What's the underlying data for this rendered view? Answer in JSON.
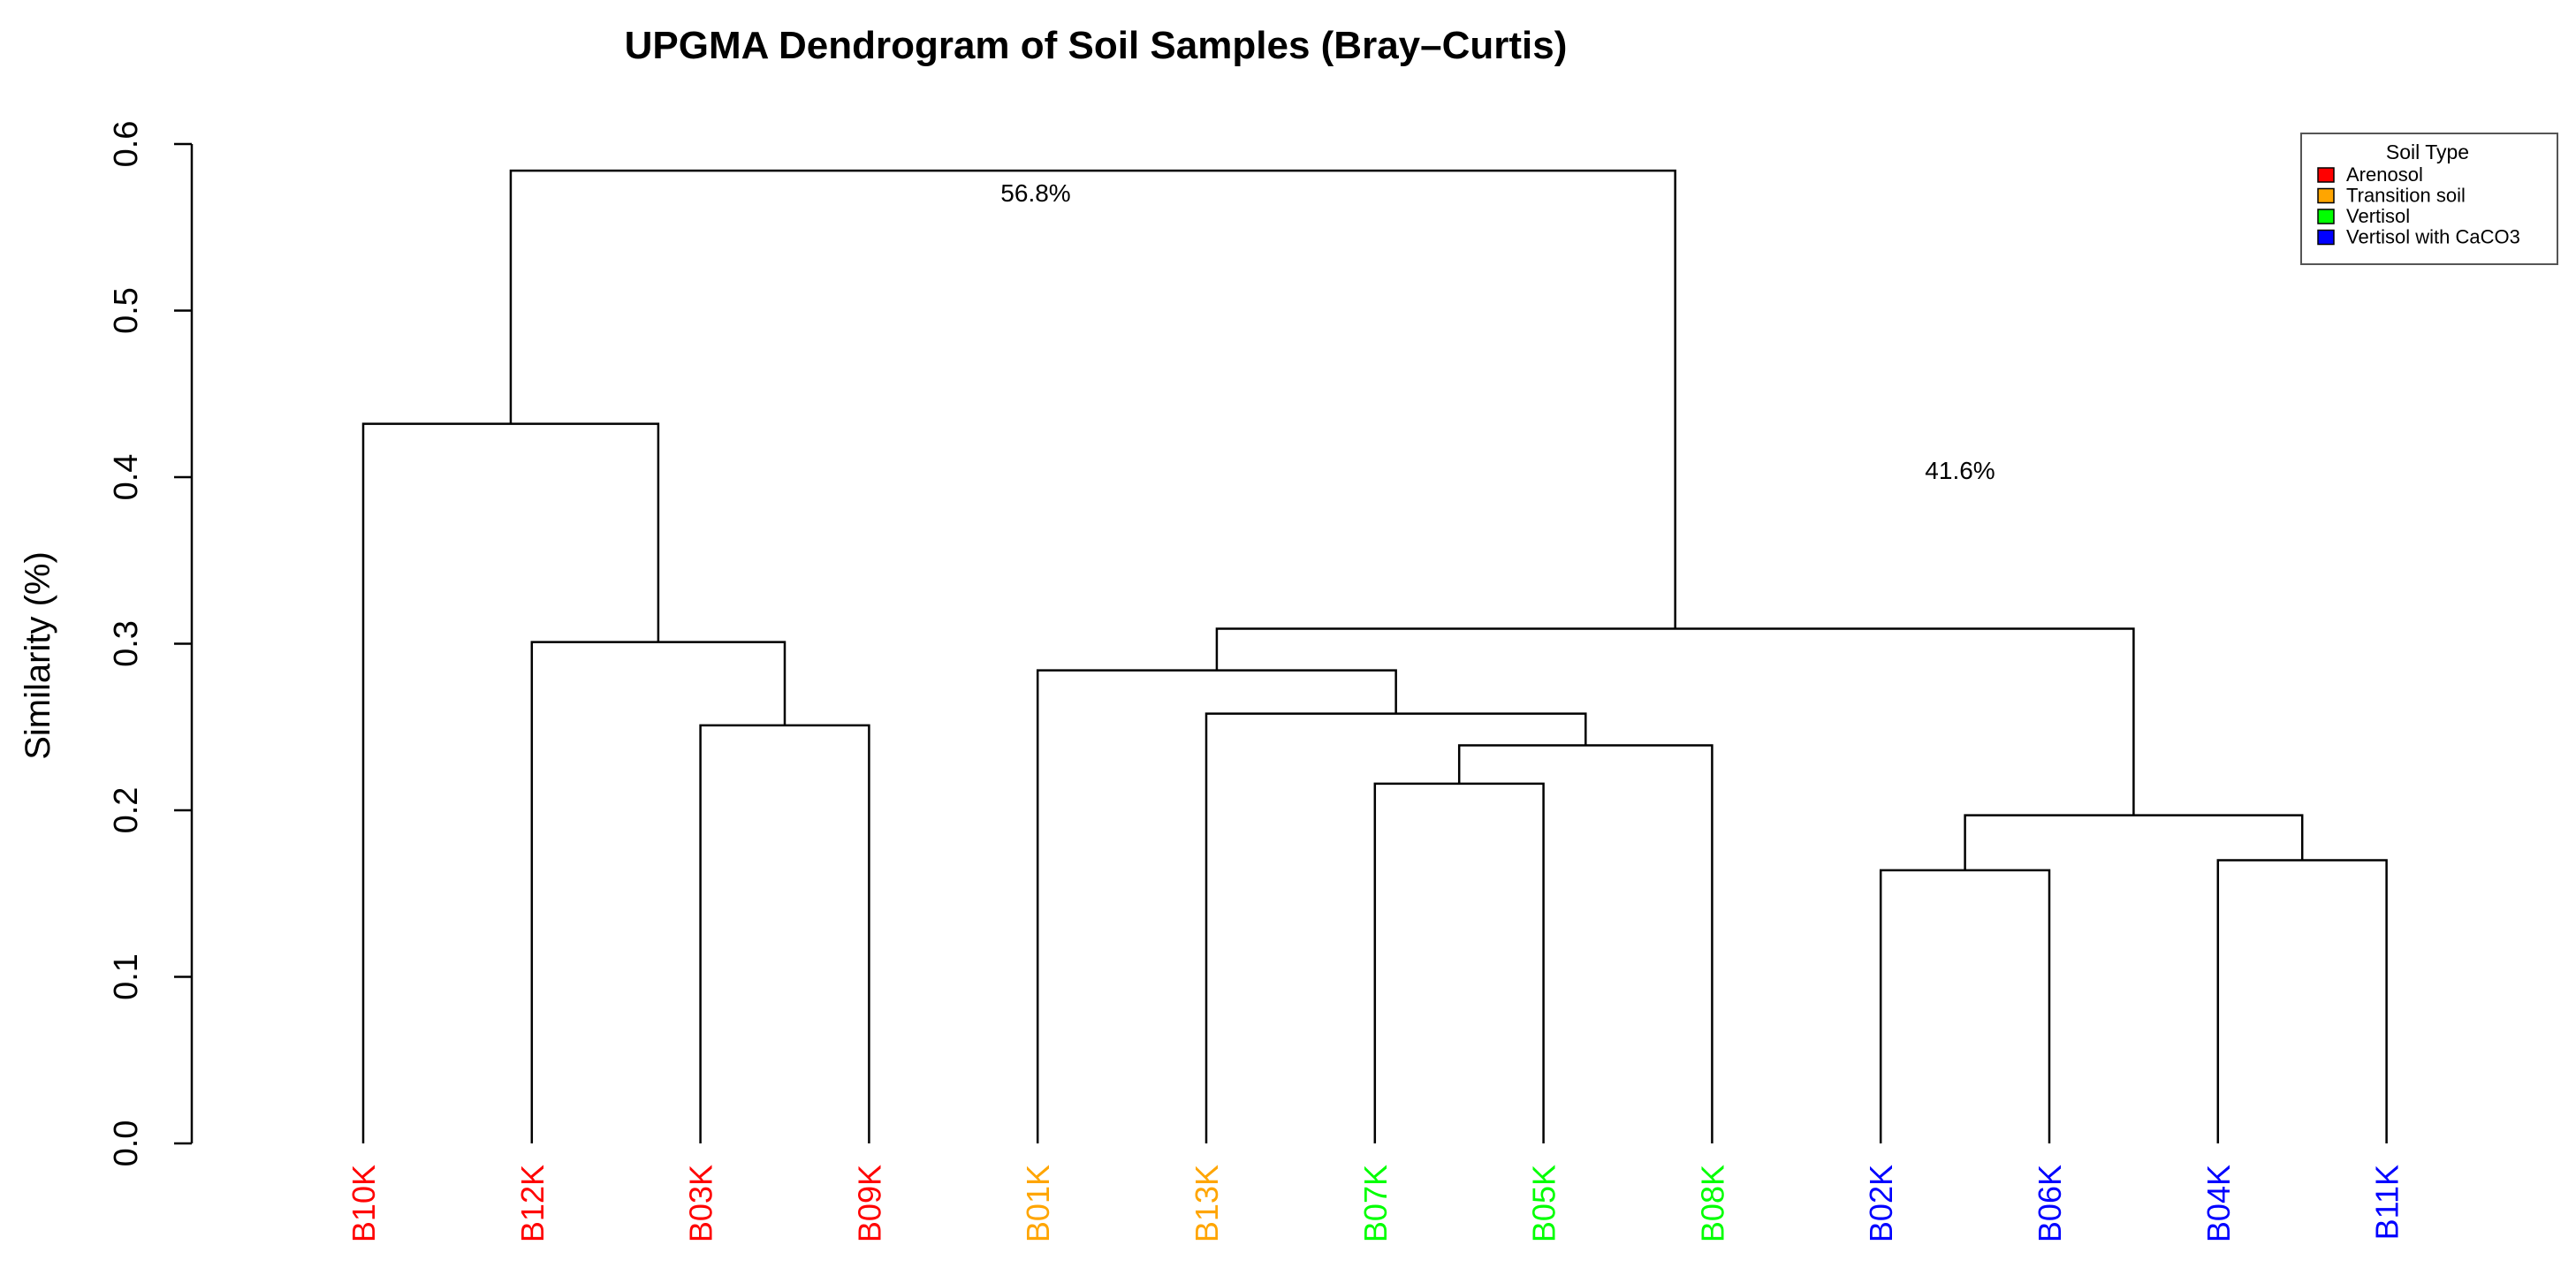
{
  "chart_data": {
    "type": "dendrogram",
    "title": "UPGMA Dendrogram of Soil Samples (Bray–Curtis)",
    "xlabel": "",
    "ylabel": "Similarity (%)",
    "ylim": [
      0,
      0.6
    ],
    "yticks": [
      "0.0",
      "0.1",
      "0.2",
      "0.3",
      "0.4",
      "0.5",
      "0.6"
    ],
    "leaves": [
      {
        "label": "B10K",
        "type": "Arenosol"
      },
      {
        "label": "B12K",
        "type": "Arenosol"
      },
      {
        "label": "B03K",
        "type": "Arenosol"
      },
      {
        "label": "B09K",
        "type": "Arenosol"
      },
      {
        "label": "B01K",
        "type": "Transition soil"
      },
      {
        "label": "B13K",
        "type": "Transition soil"
      },
      {
        "label": "B07K",
        "type": "Vertisol"
      },
      {
        "label": "B05K",
        "type": "Vertisol"
      },
      {
        "label": "B08K",
        "type": "Vertisol"
      },
      {
        "label": "B02K",
        "type": "Vertisol with CaCO3"
      },
      {
        "label": "B06K",
        "type": "Vertisol with CaCO3"
      },
      {
        "label": "B04K",
        "type": "Vertisol with CaCO3"
      },
      {
        "label": "B11K",
        "type": "Vertisol with CaCO3"
      }
    ],
    "merges": [
      {
        "left": "B03K",
        "right": "B09K",
        "height": 0.251
      },
      {
        "left": "B12K",
        "right": "m1",
        "height": 0.301
      },
      {
        "left": "B10K",
        "right": "m2",
        "height": 0.432
      },
      {
        "left": "B07K",
        "right": "B05K",
        "height": 0.216
      },
      {
        "left": "m4",
        "right": "B08K",
        "height": 0.239
      },
      {
        "left": "B13K",
        "right": "m5",
        "height": 0.258
      },
      {
        "left": "B01K",
        "right": "m6",
        "height": 0.284
      },
      {
        "left": "B02K",
        "right": "B06K",
        "height": 0.164
      },
      {
        "left": "B04K",
        "right": "B11K",
        "height": 0.17
      },
      {
        "left": "m8",
        "right": "m9",
        "height": 0.197
      },
      {
        "left": "m7",
        "right": "m10",
        "height": 0.309
      },
      {
        "left": "m3",
        "right": "m11",
        "height": 0.584
      }
    ],
    "annotations": [
      "56.8%",
      "41.6%"
    ],
    "legend": {
      "title": "Soil Type",
      "position": "top-right",
      "entries": [
        {
          "label": "Arenosol",
          "color": "#ff0000"
        },
        {
          "label": "Transition soil",
          "color": "#ffa500"
        },
        {
          "label": "Vertisol",
          "color": "#00ff00"
        },
        {
          "label": "Vertisol with CaCO3",
          "color": "#0000ff"
        }
      ]
    },
    "grid": false
  }
}
